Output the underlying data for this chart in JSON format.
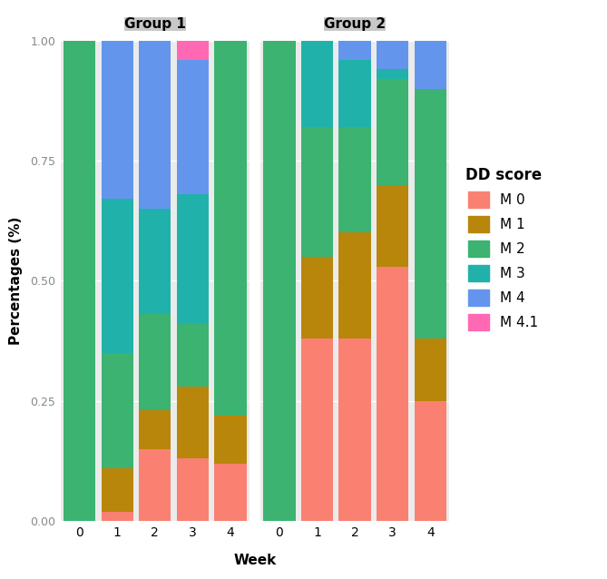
{
  "groups": [
    "Group 1",
    "Group 2"
  ],
  "weeks": [
    0,
    1,
    2,
    3,
    4
  ],
  "categories": [
    "M 0",
    "M 1",
    "M 2",
    "M 3",
    "M 4",
    "M 4.1"
  ],
  "colors": {
    "M 0": "#FA8072",
    "M 1": "#B8860B",
    "M 2": "#3CB371",
    "M 3": "#20B2AA",
    "M 4": "#6495ED",
    "M 4.1": "#FF69B4"
  },
  "group1_data": {
    "M 0": [
      0.0,
      0.02,
      0.15,
      0.13,
      0.12
    ],
    "M 1": [
      0.0,
      0.09,
      0.08,
      0.15,
      0.1
    ],
    "M 2": [
      1.0,
      0.24,
      0.2,
      0.13,
      0.78
    ],
    "M 3": [
      0.0,
      0.32,
      0.22,
      0.27,
      0.0
    ],
    "M 4": [
      0.0,
      0.33,
      0.35,
      0.28,
      0.0
    ],
    "M 4.1": [
      0.0,
      0.0,
      0.0,
      0.04,
      0.0
    ]
  },
  "group2_data": {
    "M 0": [
      0.0,
      0.38,
      0.38,
      0.53,
      0.25
    ],
    "M 1": [
      0.0,
      0.17,
      0.22,
      0.17,
      0.13
    ],
    "M 2": [
      1.0,
      0.27,
      0.22,
      0.22,
      0.52
    ],
    "M 3": [
      0.0,
      0.18,
      0.14,
      0.02,
      0.0
    ],
    "M 4": [
      0.0,
      0.0,
      0.04,
      0.06,
      0.1
    ],
    "M 4.1": [
      0.0,
      0.0,
      0.0,
      0.0,
      0.0
    ]
  },
  "ylabel": "Percentages (%)",
  "xlabel": "Week",
  "legend_title": "DD score",
  "yticks": [
    0.0,
    0.25,
    0.5,
    0.75,
    1.0
  ],
  "panel_bg": "#EBEBEB",
  "strip_bg": "#C8C8C8",
  "bar_width": 0.85,
  "figsize": [
    6.69,
    6.38
  ],
  "dpi": 100
}
